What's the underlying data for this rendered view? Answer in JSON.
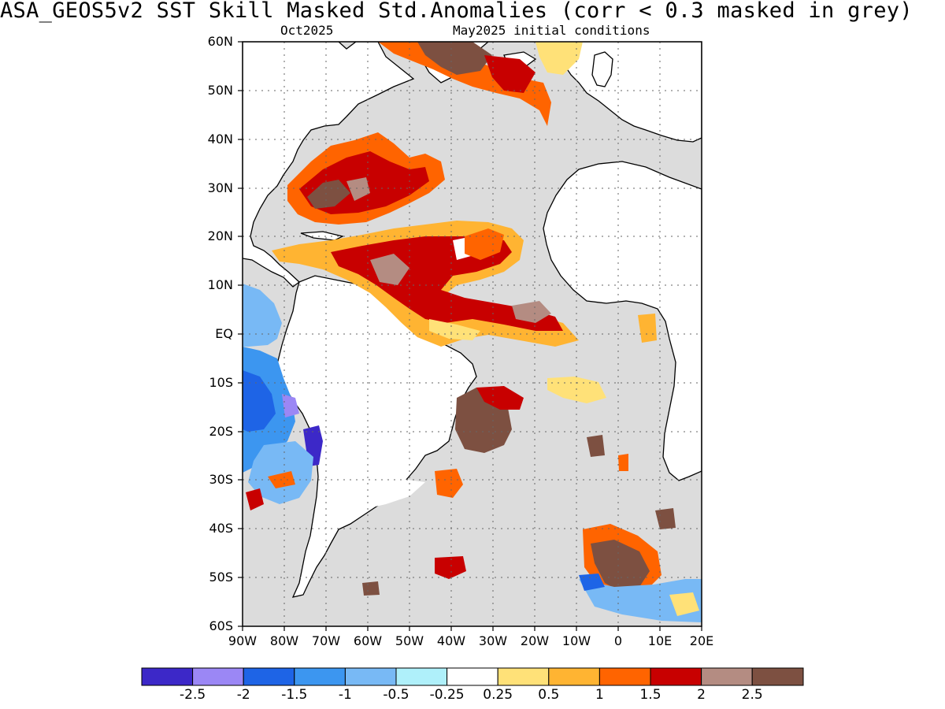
{
  "header": {
    "title": "ASA_GEOS5v2   SST Skill Masked Std.Anomalies (corr < 0.3 masked in grey)",
    "month_label": "Oct2025",
    "init_label": "May2025 initial conditions"
  },
  "map": {
    "region": "Atlantic Ocean",
    "lon_range": [
      -90,
      20
    ],
    "lat_range": [
      -60,
      60
    ],
    "lat_labels": [
      "60N",
      "50N",
      "40N",
      "30N",
      "20N",
      "10N",
      "EQ",
      "10S",
      "20S",
      "30S",
      "40S",
      "50S",
      "60S"
    ],
    "lon_labels": [
      "90W",
      "80W",
      "70W",
      "60W",
      "50W",
      "40W",
      "30W",
      "20W",
      "10W",
      "0",
      "10E",
      "20E"
    ],
    "mask_color": "#dcdcdc",
    "grid": "dotted"
  },
  "colorbar": {
    "colors": [
      "#3c28c8",
      "#9b87f5",
      "#1e64e6",
      "#3c96f0",
      "#78b9f5",
      "#aff0fa",
      "#ffffff",
      "#ffe178",
      "#ffb432",
      "#ff6400",
      "#c80000",
      "#b48c82",
      "#7d5041"
    ],
    "labels": [
      "-2.5",
      "-2",
      "-1.5",
      "-1",
      "-0.5",
      "-0.25",
      "0.25",
      "0.5",
      "1",
      "1.5",
      "2",
      "2.5"
    ]
  }
}
